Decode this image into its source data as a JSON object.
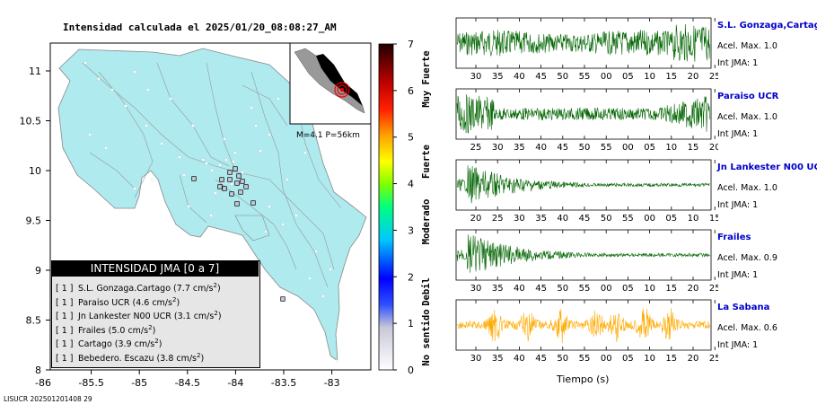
{
  "header": {
    "title": "Intensidad calculada el 2025/01/20_08:08:27_AM"
  },
  "footer": {
    "id": "LISUCR 202501201408 29"
  },
  "map": {
    "x_ticks": [
      "-86",
      "-85.5",
      "-85",
      "-84.5",
      "-84",
      "-83.5",
      "-83"
    ],
    "y_ticks": [
      "11",
      "10.5",
      "10",
      "9.5",
      "9",
      "8.5",
      "8"
    ],
    "land_color": "#aeeaee",
    "inset_label": "M=4.1 P=56km"
  },
  "colorbar": {
    "ticks": [
      "0",
      "1",
      "2",
      "3",
      "4",
      "5",
      "6",
      "7"
    ],
    "categories": [
      "No sentido",
      "Debil",
      "Moderado",
      "Fuerte",
      "Muy Fuerte"
    ]
  },
  "legend": {
    "title": "INTENSIDAD JMA [0 a 7]",
    "rows": [
      {
        "bracket": "[ 1 ]",
        "name": "S.L. Gonzaga.Cartago",
        "value": "(7.7 cm/s",
        "unit_sup": "2",
        "close": ")"
      },
      {
        "bracket": "[ 1 ]",
        "name": "Paraiso UCR",
        "value": "(4.6 cm/s",
        "unit_sup": "2",
        "close": ")"
      },
      {
        "bracket": "[ 1 ]",
        "name": "Jn Lankester N00 UCR",
        "value": "(3.1 cm/s",
        "unit_sup": "2",
        "close": ")"
      },
      {
        "bracket": "[ 1 ]",
        "name": "Frailes",
        "value": "(5.0 cm/s",
        "unit_sup": "2",
        "close": ")"
      },
      {
        "bracket": "[ 1 ]",
        "name": "Cartago",
        "value": "(3.9 cm/s",
        "unit_sup": "2",
        "close": ")"
      },
      {
        "bracket": "[ 1 ]",
        "name": "Bebedero. Escazu",
        "value": "(3.8 cm/s",
        "unit_sup": "2",
        "close": ")"
      }
    ]
  },
  "stations": [
    {
      "name": "S.L. Gonzaga,Cartago",
      "acel": "Acel. Max. 1.0",
      "int": "Int JMA: 1",
      "color": "#006400",
      "ticks": [
        "30",
        "35",
        "40",
        "45",
        "50",
        "55",
        "00",
        "05",
        "10",
        "15",
        "20",
        "25"
      ],
      "amp": 0.6,
      "envelope": "late"
    },
    {
      "name": "Paraiso UCR",
      "acel": "Acel. Max. 1.0",
      "int": "Int JMA: 1",
      "color": "#006400",
      "ticks": [
        "25",
        "30",
        "35",
        "40",
        "45",
        "50",
        "55",
        "00",
        "05",
        "10",
        "15",
        "20"
      ],
      "amp": 0.75,
      "envelope": "both"
    },
    {
      "name": "Jn Lankester N00 UCR",
      "acel": "Acel. Max. 1.0",
      "int": "Int JMA: 1",
      "color": "#006400",
      "ticks": [
        "20",
        "25",
        "30",
        "35",
        "40",
        "45",
        "50",
        "55",
        "00",
        "05",
        "10",
        "15"
      ],
      "amp": 0.9,
      "envelope": "early"
    },
    {
      "name": "Frailes",
      "acel": "Acel. Max. 0.9",
      "int": "Int JMA: 1",
      "color": "#006400",
      "ticks": [
        "30",
        "35",
        "40",
        "45",
        "50",
        "55",
        "00",
        "05",
        "10",
        "15",
        "20",
        "25"
      ],
      "amp": 0.95,
      "envelope": "early"
    },
    {
      "name": "La Sabana",
      "acel": "Acel. Max. 0.6",
      "int": "Int JMA: 1",
      "color": "#ffaa00",
      "ticks": [
        "30",
        "35",
        "40",
        "45",
        "50",
        "55",
        "00",
        "05",
        "10",
        "15",
        "20",
        "25"
      ],
      "amp": 0.7,
      "envelope": "bursts"
    }
  ],
  "traces": {
    "xlabel": "Tiempo (s)"
  }
}
